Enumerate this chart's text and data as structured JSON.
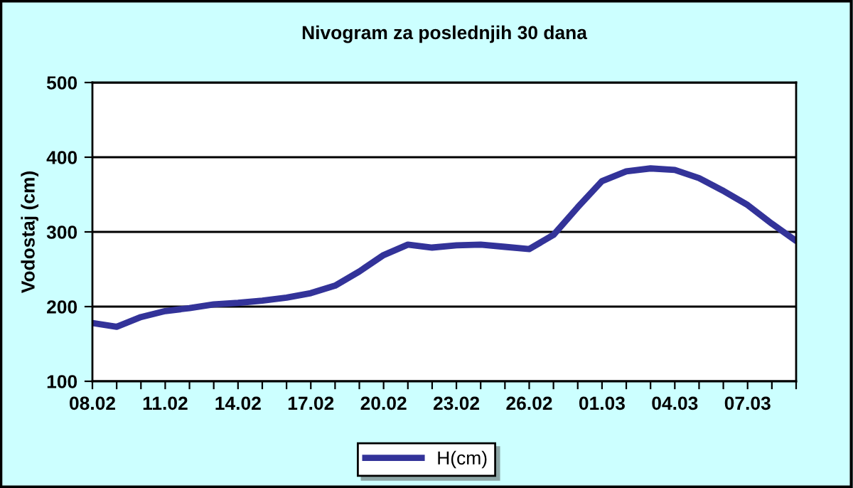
{
  "chart_data": {
    "type": "line",
    "title": "Nivogram za poslednjih 30 dana",
    "ylabel": "Vodostaj (cm)",
    "categories": [
      "08.02",
      null,
      null,
      "11.02",
      null,
      null,
      "14.02",
      null,
      null,
      "17.02",
      null,
      null,
      "20.02",
      null,
      null,
      "23.02",
      null,
      null,
      "26.02",
      null,
      null,
      "01.03",
      null,
      null,
      "04.03",
      null,
      null,
      "07.03",
      null,
      null
    ],
    "series": [
      {
        "name": "H(cm)",
        "color": "#333399",
        "values": [
          178,
          173,
          186,
          194,
          198,
          203,
          205,
          208,
          212,
          218,
          228,
          247,
          269,
          283,
          279,
          282,
          283,
          280,
          277,
          296,
          333,
          368,
          381,
          385,
          383,
          372,
          355,
          336,
          311,
          288
        ]
      }
    ],
    "ylim": [
      100,
      500
    ],
    "yticks": [
      100,
      200,
      300,
      400,
      500
    ],
    "grid": "y",
    "legend": "bottom",
    "marker": "none",
    "line_style": "solid"
  }
}
